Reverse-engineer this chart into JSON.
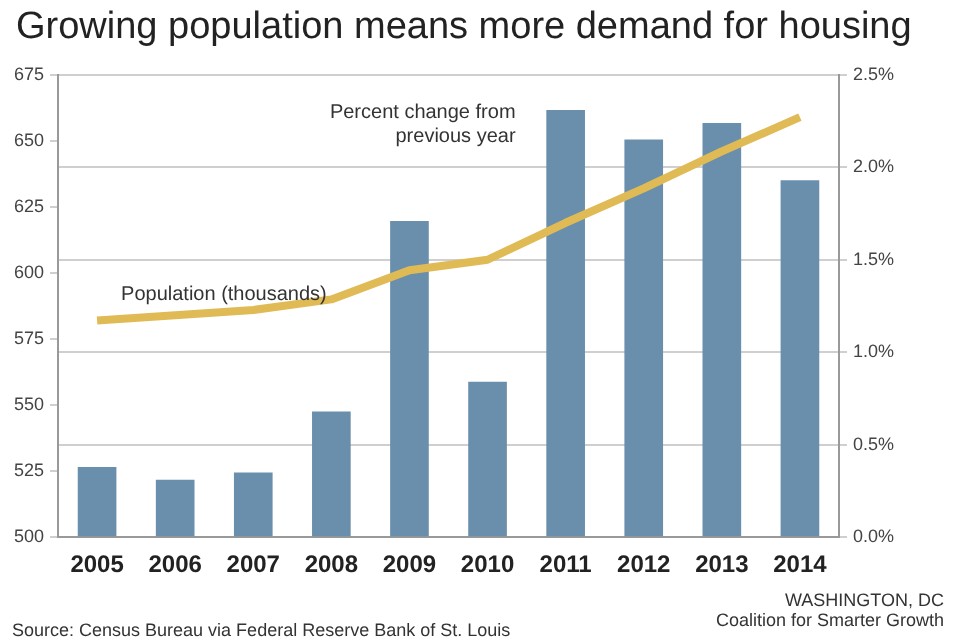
{
  "chart_data": {
    "type": "bar",
    "title": "Growing population means more demand for housing",
    "categories": [
      "2005",
      "2006",
      "2007",
      "2008",
      "2009",
      "2010",
      "2011",
      "2012",
      "2013",
      "2014"
    ],
    "series": [
      {
        "name": "Percent change from previous year",
        "axis": "y2",
        "color": "#6a8fac",
        "values": [
          0.38,
          0.31,
          0.35,
          0.68,
          1.71,
          0.84,
          2.31,
          2.15,
          2.24,
          1.93
        ]
      },
      {
        "name": "Population (thousands)",
        "type": "line",
        "color": "#e0bb55",
        "values": [
          582,
          584,
          586,
          590,
          601,
          605,
          619,
          632,
          646,
          659
        ]
      }
    ],
    "ylim": [
      500,
      675
    ],
    "yticks": [
      500,
      525,
      550,
      575,
      600,
      625,
      650,
      675
    ],
    "y2lim": [
      0,
      2.5
    ],
    "y2ticks": [
      {
        "value": 0,
        "label": "0.0%"
      },
      {
        "value": 0.5,
        "label": "0.5%"
      },
      {
        "value": 1,
        "label": "1.0%"
      },
      {
        "value": 1.5,
        "label": "1.5%"
      },
      {
        "value": 2,
        "label": "2.0%"
      },
      {
        "value": 2.5,
        "label": "2.5%"
      }
    ],
    "grid": "y2",
    "legend": false,
    "marker": "none",
    "line_style": "solid",
    "annotations": [
      "Source: Census Bureau via Federal Reserve Bank of St. Louis",
      "WASHINGTON, DC",
      "Coalition for Smarter Growth"
    ]
  }
}
